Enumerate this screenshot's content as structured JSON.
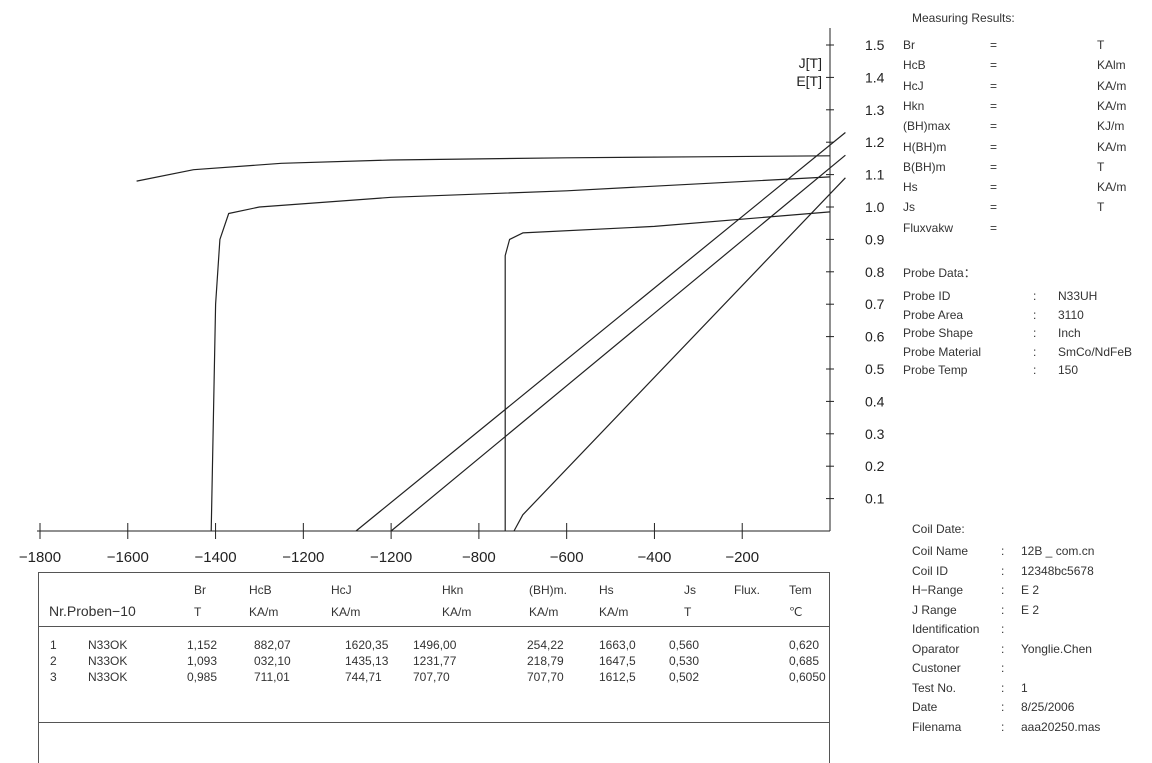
{
  "chart_data": {
    "type": "line",
    "title": "",
    "xlabel": "",
    "ylabel": [
      "J[T]",
      "E[T]"
    ],
    "xlim": [
      -1800,
      0
    ],
    "ylim": [
      0,
      1.5
    ],
    "x_tick_labels": [
      "-1800",
      "-1600",
      "-1400",
      "-1200",
      "-1200",
      "-800",
      "-600",
      "-400",
      "-200"
    ],
    "y_tick_labels": [
      "0.1",
      "0.2",
      "0.3",
      "0.4",
      "0.5",
      "0.6",
      "0.7",
      "0.8",
      "0.9",
      "1.0",
      "1.1",
      "1.2",
      "1.3",
      "1.4",
      "1.5"
    ],
    "series": [
      {
        "x": [
          -1580,
          -1450,
          -1250,
          -1000,
          -600,
          -300,
          0
        ],
        "y": [
          1.08,
          1.115,
          1.135,
          1.145,
          1.152,
          1.155,
          1.158
        ]
      },
      {
        "x": [
          -1410,
          -1400,
          -1390,
          -1370,
          -1300,
          -1000,
          -600,
          0
        ],
        "y": [
          0,
          0.7,
          0.9,
          0.98,
          1.0,
          1.03,
          1.05,
          1.093
        ]
      },
      {
        "x": [
          -740,
          -740,
          -730,
          -700,
          -400,
          0
        ],
        "y": [
          0,
          0.85,
          0.9,
          0.92,
          0.94,
          0.985
        ]
      },
      {
        "x": [
          -1080,
          35
        ],
        "y": [
          0,
          1.23
        ]
      },
      {
        "x": [
          -1000,
          35
        ],
        "y": [
          0,
          1.16
        ]
      },
      {
        "x": [
          -720,
          -700,
          35
        ],
        "y": [
          0,
          0.05,
          1.09
        ]
      }
    ]
  },
  "results": {
    "title": "Measuring Results:",
    "rows": [
      {
        "label": "Br",
        "eq": "=",
        "unit": "T"
      },
      {
        "label": "HcB",
        "eq": "=",
        "unit": "KAlm"
      },
      {
        "label": "HcJ",
        "eq": "=",
        "unit": "KA/m"
      },
      {
        "label": "Hkn",
        "eq": "=",
        "unit": "KA/m"
      },
      {
        "label": "(BH)max",
        "eq": "=",
        "unit": "KJ/m"
      },
      {
        "label": "H(BH)m",
        "eq": "=",
        "unit": "KA/m"
      },
      {
        "label": "B(BH)m",
        "eq": "=",
        "unit": "T"
      },
      {
        "label": "Hs",
        "eq": "=",
        "unit": "KA/m"
      },
      {
        "label": "Js",
        "eq": "=",
        "unit": "T"
      },
      {
        "label": "Fluxvakw",
        "eq": "=",
        "unit": ""
      }
    ]
  },
  "probe": {
    "title": "Probe Data：",
    "rows": [
      {
        "label": "Probe ID",
        "sep": ":",
        "value": "N33UH"
      },
      {
        "label": "Probe Area",
        "sep": ":",
        "value": "3110"
      },
      {
        "label": "Probe Shape",
        "sep": ":",
        "value": "Inch"
      },
      {
        "label": "Probe Material",
        "sep": ":",
        "value": "SmCo/NdFeB"
      },
      {
        "label": "Probe Temp",
        "sep": ":",
        "value": "150"
      }
    ]
  },
  "coil": {
    "title": "Coil Date:",
    "rows": [
      {
        "label": "Coil Name",
        "sep": ":",
        "value": "12B _ com.cn"
      },
      {
        "label": "Coil ID",
        "sep": ":",
        "value": "12348bc5678"
      },
      {
        "label": "H−Range",
        "sep": ":",
        "value": "E  2"
      },
      {
        "label": "J Range",
        "sep": ":",
        "value": "E  2"
      },
      {
        "label": "Identification",
        "sep": ":",
        "value": ""
      },
      {
        "label": "Oparator",
        "sep": ":",
        "value": "Yonglie.Chen"
      },
      {
        "label": "Custoner",
        "sep": ":",
        "value": ""
      },
      {
        "label": "Test No.",
        "sep": ":",
        "value": "1"
      },
      {
        "label": "Date",
        "sep": ":",
        "value": "8/25/2006"
      },
      {
        "label": "Filenama",
        "sep": ":",
        "value": "aaa20250.mas"
      }
    ]
  },
  "table": {
    "title": "Nr.Proben−10",
    "columns": [
      {
        "name": "Br",
        "unit": "T"
      },
      {
        "name": "HcB",
        "unit": "KA/m"
      },
      {
        "name": "HcJ",
        "unit": "KA/m"
      },
      {
        "name": "Hkn",
        "unit": "KA/m"
      },
      {
        "name": "(BH)m.",
        "unit": "KA/m"
      },
      {
        "name": "Hs",
        "unit": "KA/m"
      },
      {
        "name": "Js",
        "unit": "T"
      },
      {
        "name": "Flux.",
        "unit": ""
      },
      {
        "name": "Tem",
        "unit": "℃"
      }
    ],
    "rows": [
      {
        "no": "1",
        "name": "N33OK",
        "cells": [
          "1,152",
          "882,07",
          "1620,35",
          "1496,00",
          "254,22",
          "1663,0",
          "0,560",
          "",
          "0,620"
        ]
      },
      {
        "no": "2",
        "name": "N33OK",
        "cells": [
          "1,093",
          "032,10",
          "1435,13",
          "1231,77",
          "218,79",
          "1647,5",
          "0,530",
          "",
          "0,685"
        ]
      },
      {
        "no": "3",
        "name": "N33OK",
        "cells": [
          "0,985",
          "711,01",
          "744,71",
          "707,70",
          "707,70",
          "1612,5",
          "0,502",
          "",
          "0,6050"
        ]
      }
    ]
  }
}
